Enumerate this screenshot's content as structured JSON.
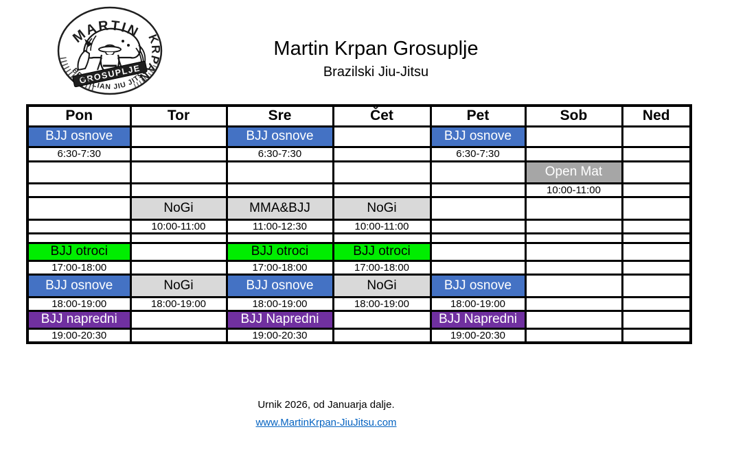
{
  "logo": {
    "name_top": "MARTIN",
    "name_right": "KRPAN",
    "banner": "GROSUPLJE",
    "bottom_text": "BRAZILIAN JIU JITSU"
  },
  "header": {
    "title": "Martin Krpan Grosuplje",
    "subtitle": "Brazilski Jiu-Jitsu"
  },
  "schedule": {
    "days": [
      "Pon",
      "Tor",
      "Sre",
      "Čet",
      "Pet",
      "Sob",
      "Ned"
    ],
    "rows": [
      {
        "cells": [
          {
            "text": "BJJ osnove",
            "style": "blue"
          },
          null,
          {
            "text": "BJJ osnove",
            "style": "blue"
          },
          null,
          {
            "text": "BJJ osnove",
            "style": "blue"
          },
          null,
          null
        ]
      },
      {
        "cells": [
          {
            "text": "6:30-7:30",
            "style": "time"
          },
          null,
          {
            "text": "6:30-7:30",
            "style": "time"
          },
          null,
          {
            "text": "6:30-7:30",
            "style": "time"
          },
          null,
          null
        ]
      },
      {
        "cells": [
          null,
          null,
          null,
          null,
          null,
          {
            "text": "Open Mat",
            "style": "dkgray"
          },
          null
        ]
      },
      {
        "cells": [
          null,
          null,
          null,
          null,
          null,
          {
            "text": "10:00-11:00",
            "style": "time"
          },
          null
        ]
      },
      {
        "cells": [
          null,
          {
            "text": "NoGi",
            "style": "ltgray"
          },
          {
            "text": "MMA&BJJ",
            "style": "ltgray"
          },
          {
            "text": "NoGi",
            "style": "ltgray"
          },
          null,
          null,
          null
        ]
      },
      {
        "cells": [
          null,
          {
            "text": "10:00-11:00",
            "style": "time"
          },
          {
            "text": "11:00-12:30",
            "style": "time"
          },
          {
            "text": "10:00-11:00",
            "style": "time"
          },
          null,
          null,
          null
        ]
      },
      {
        "cells": [
          null,
          null,
          null,
          null,
          null,
          null,
          null
        ]
      },
      {
        "cells": [
          {
            "text": "BJJ otroci",
            "style": "green"
          },
          null,
          {
            "text": "BJJ otroci",
            "style": "green"
          },
          {
            "text": "BJJ otroci",
            "style": "green"
          },
          null,
          null,
          null
        ]
      },
      {
        "cells": [
          {
            "text": "17:00-18:00",
            "style": "time"
          },
          null,
          {
            "text": "17:00-18:00",
            "style": "time"
          },
          {
            "text": "17:00-18:00",
            "style": "time"
          },
          null,
          null,
          null
        ]
      },
      {
        "cells": [
          {
            "text": "BJJ osnove",
            "style": "blue"
          },
          {
            "text": "NoGi",
            "style": "ltgray"
          },
          {
            "text": "BJJ osnove",
            "style": "blue"
          },
          {
            "text": "NoGi",
            "style": "ltgray"
          },
          {
            "text": "BJJ osnove",
            "style": "blue"
          },
          null,
          null
        ]
      },
      {
        "cells": [
          {
            "text": "18:00-19:00",
            "style": "time"
          },
          {
            "text": "18:00-19:00",
            "style": "time"
          },
          {
            "text": "18:00-19:00",
            "style": "time"
          },
          {
            "text": "18:00-19:00",
            "style": "time"
          },
          {
            "text": "18:00-19:00",
            "style": "time"
          },
          null,
          null
        ]
      },
      {
        "cells": [
          {
            "text": "BJJ napredni",
            "style": "purple"
          },
          null,
          {
            "text": "BJJ Napredni",
            "style": "purple"
          },
          null,
          {
            "text": "BJJ Napredni",
            "style": "purple"
          },
          null,
          null
        ]
      },
      {
        "cells": [
          {
            "text": "19:00-20:30",
            "style": "time"
          },
          null,
          {
            "text": "19:00-20:30",
            "style": "time"
          },
          null,
          {
            "text": "19:00-20:30",
            "style": "time"
          },
          null,
          null
        ]
      }
    ]
  },
  "footer": {
    "note": "Urnik 2026, od Januarja dalje.",
    "link": "www.MartinKrpan-JiuJitsu.com"
  },
  "colors": {
    "class_blue": "#4472C4",
    "class_light_gray": "#D9D9D9",
    "class_dark_gray": "#A6A6A6",
    "class_green": "#00EE00",
    "class_purple": "#7030A0",
    "link_blue": "#0563C1",
    "grid_black": "#000000"
  }
}
